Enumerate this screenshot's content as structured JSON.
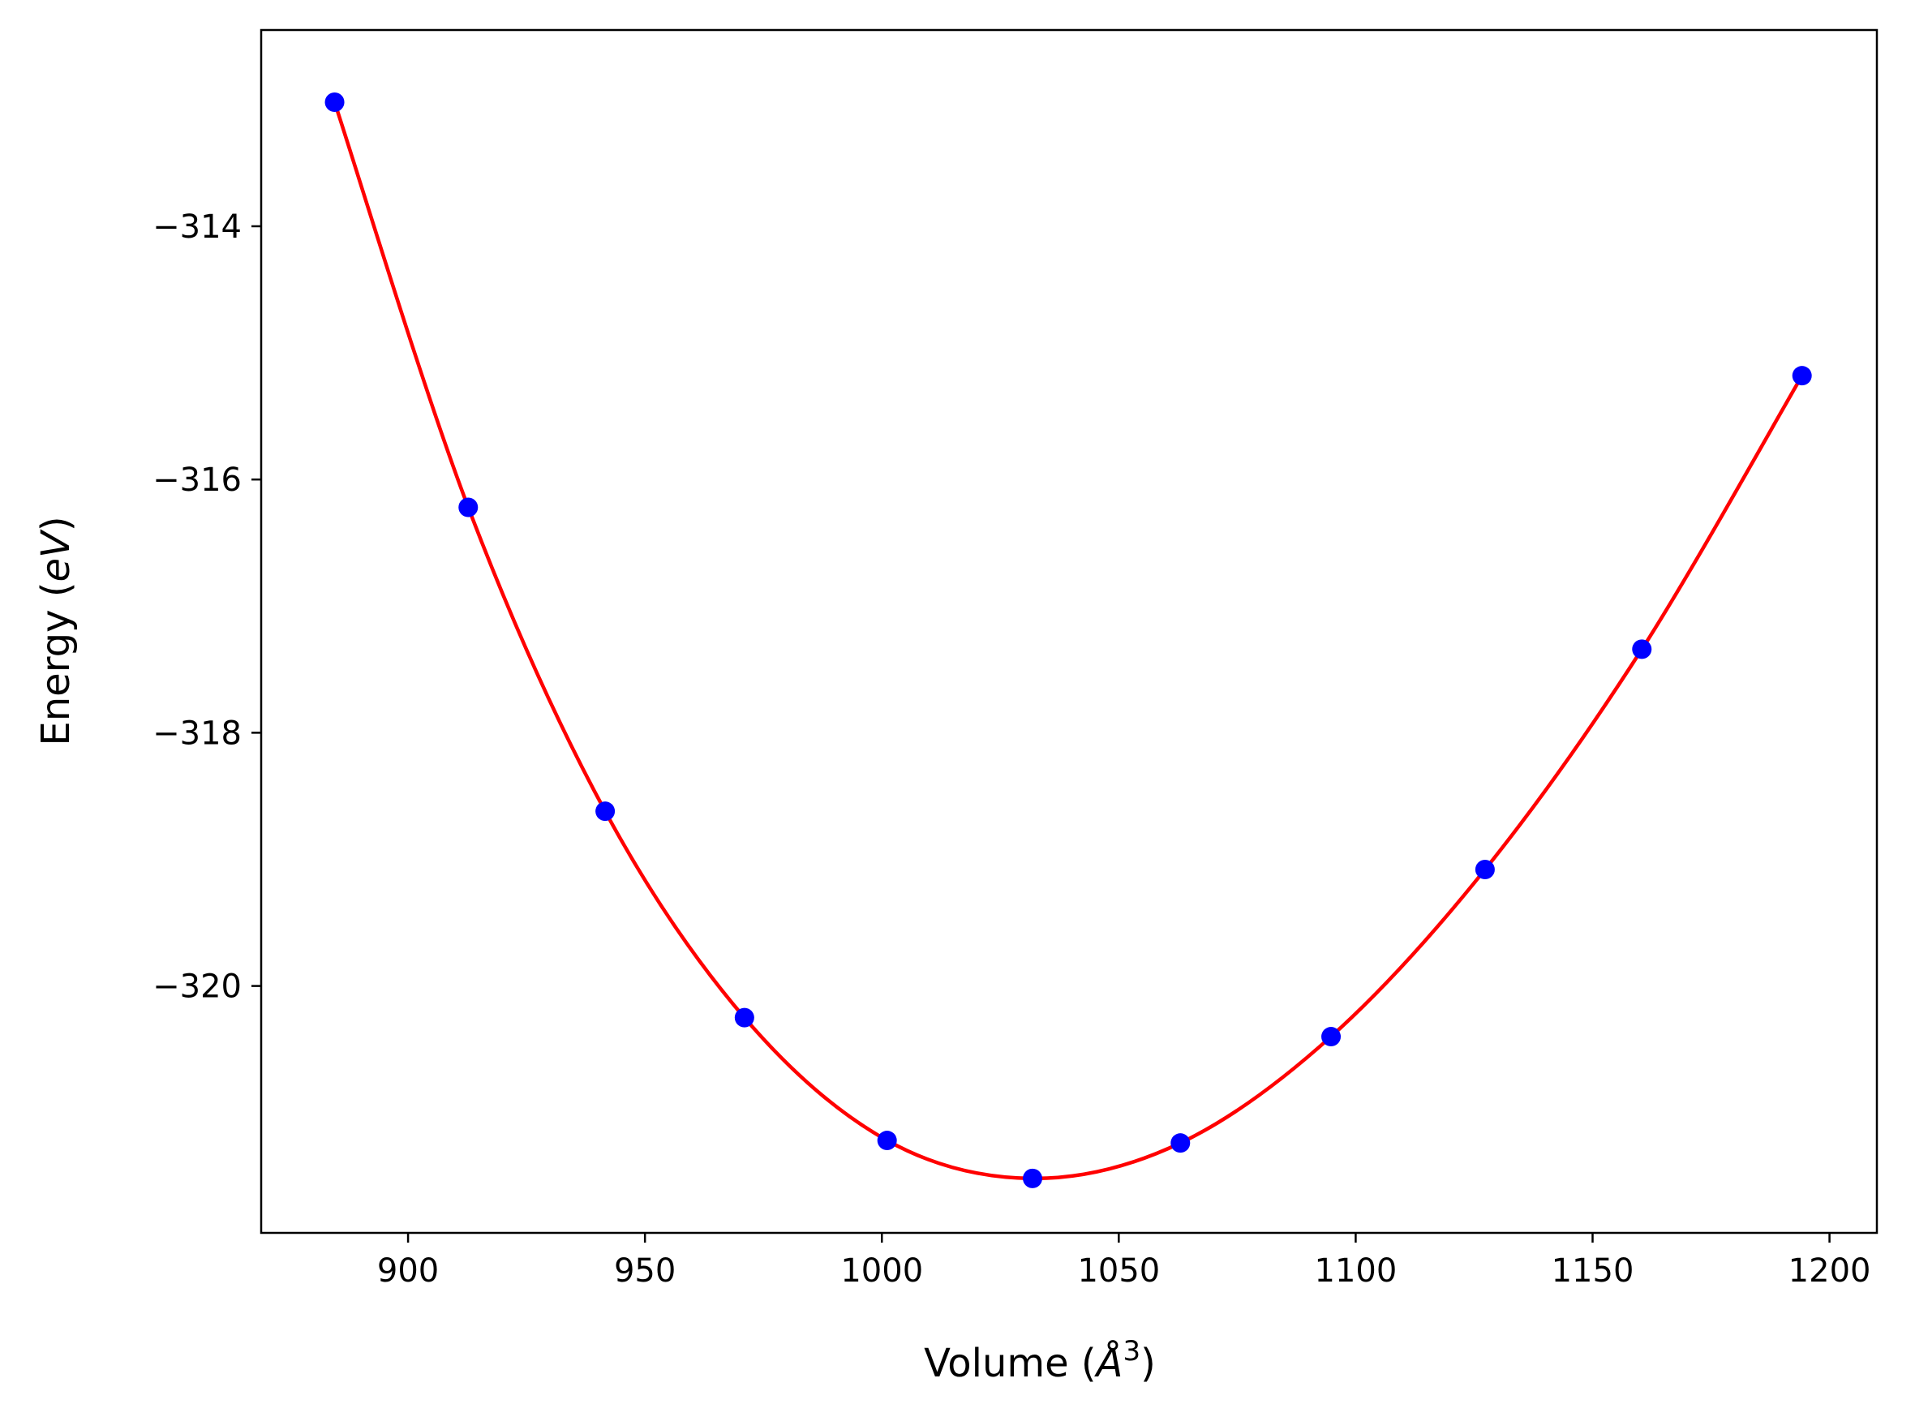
{
  "chart_data": {
    "type": "scatter",
    "title": "",
    "xlabel": "Volume (",
    "xlabel_math": "Å",
    "xlabel_sup": "3",
    "xlabel_close": ")",
    "ylabel": "Energy (",
    "ylabel_math": "eV",
    "ylabel_close": ")",
    "xlim": [
      869,
      1210
    ],
    "ylim": [
      -321.95,
      -312.45
    ],
    "xticks": [
      900,
      950,
      1000,
      1050,
      1100,
      1150,
      1200
    ],
    "yticks": [
      -314,
      -316,
      -318,
      -320
    ],
    "ytick_labels": [
      "−314",
      "−316",
      "−318",
      "−320"
    ],
    "grid": false,
    "series": [
      {
        "kind": "points",
        "color": "#0000ff",
        "x": [
          884.5,
          912.7,
          941.6,
          971.0,
          1001.1,
          1031.8,
          1063.0,
          1094.8,
          1127.3,
          1160.4,
          1194.2
        ],
        "y": [
          -313.02,
          -316.22,
          -318.62,
          -320.25,
          -321.22,
          -321.52,
          -321.24,
          -320.4,
          -319.08,
          -317.34,
          -315.18
        ]
      },
      {
        "kind": "fit-curve",
        "color": "#ff0000",
        "x": [
          884.5,
          912.7,
          941.6,
          971.0,
          1001.1,
          1031.8,
          1063.0,
          1094.8,
          1127.3,
          1160.4,
          1194.2
        ],
        "y": [
          -313.02,
          -316.22,
          -318.62,
          -320.25,
          -321.22,
          -321.52,
          -321.24,
          -320.4,
          -319.08,
          -317.34,
          -315.18
        ]
      }
    ]
  }
}
